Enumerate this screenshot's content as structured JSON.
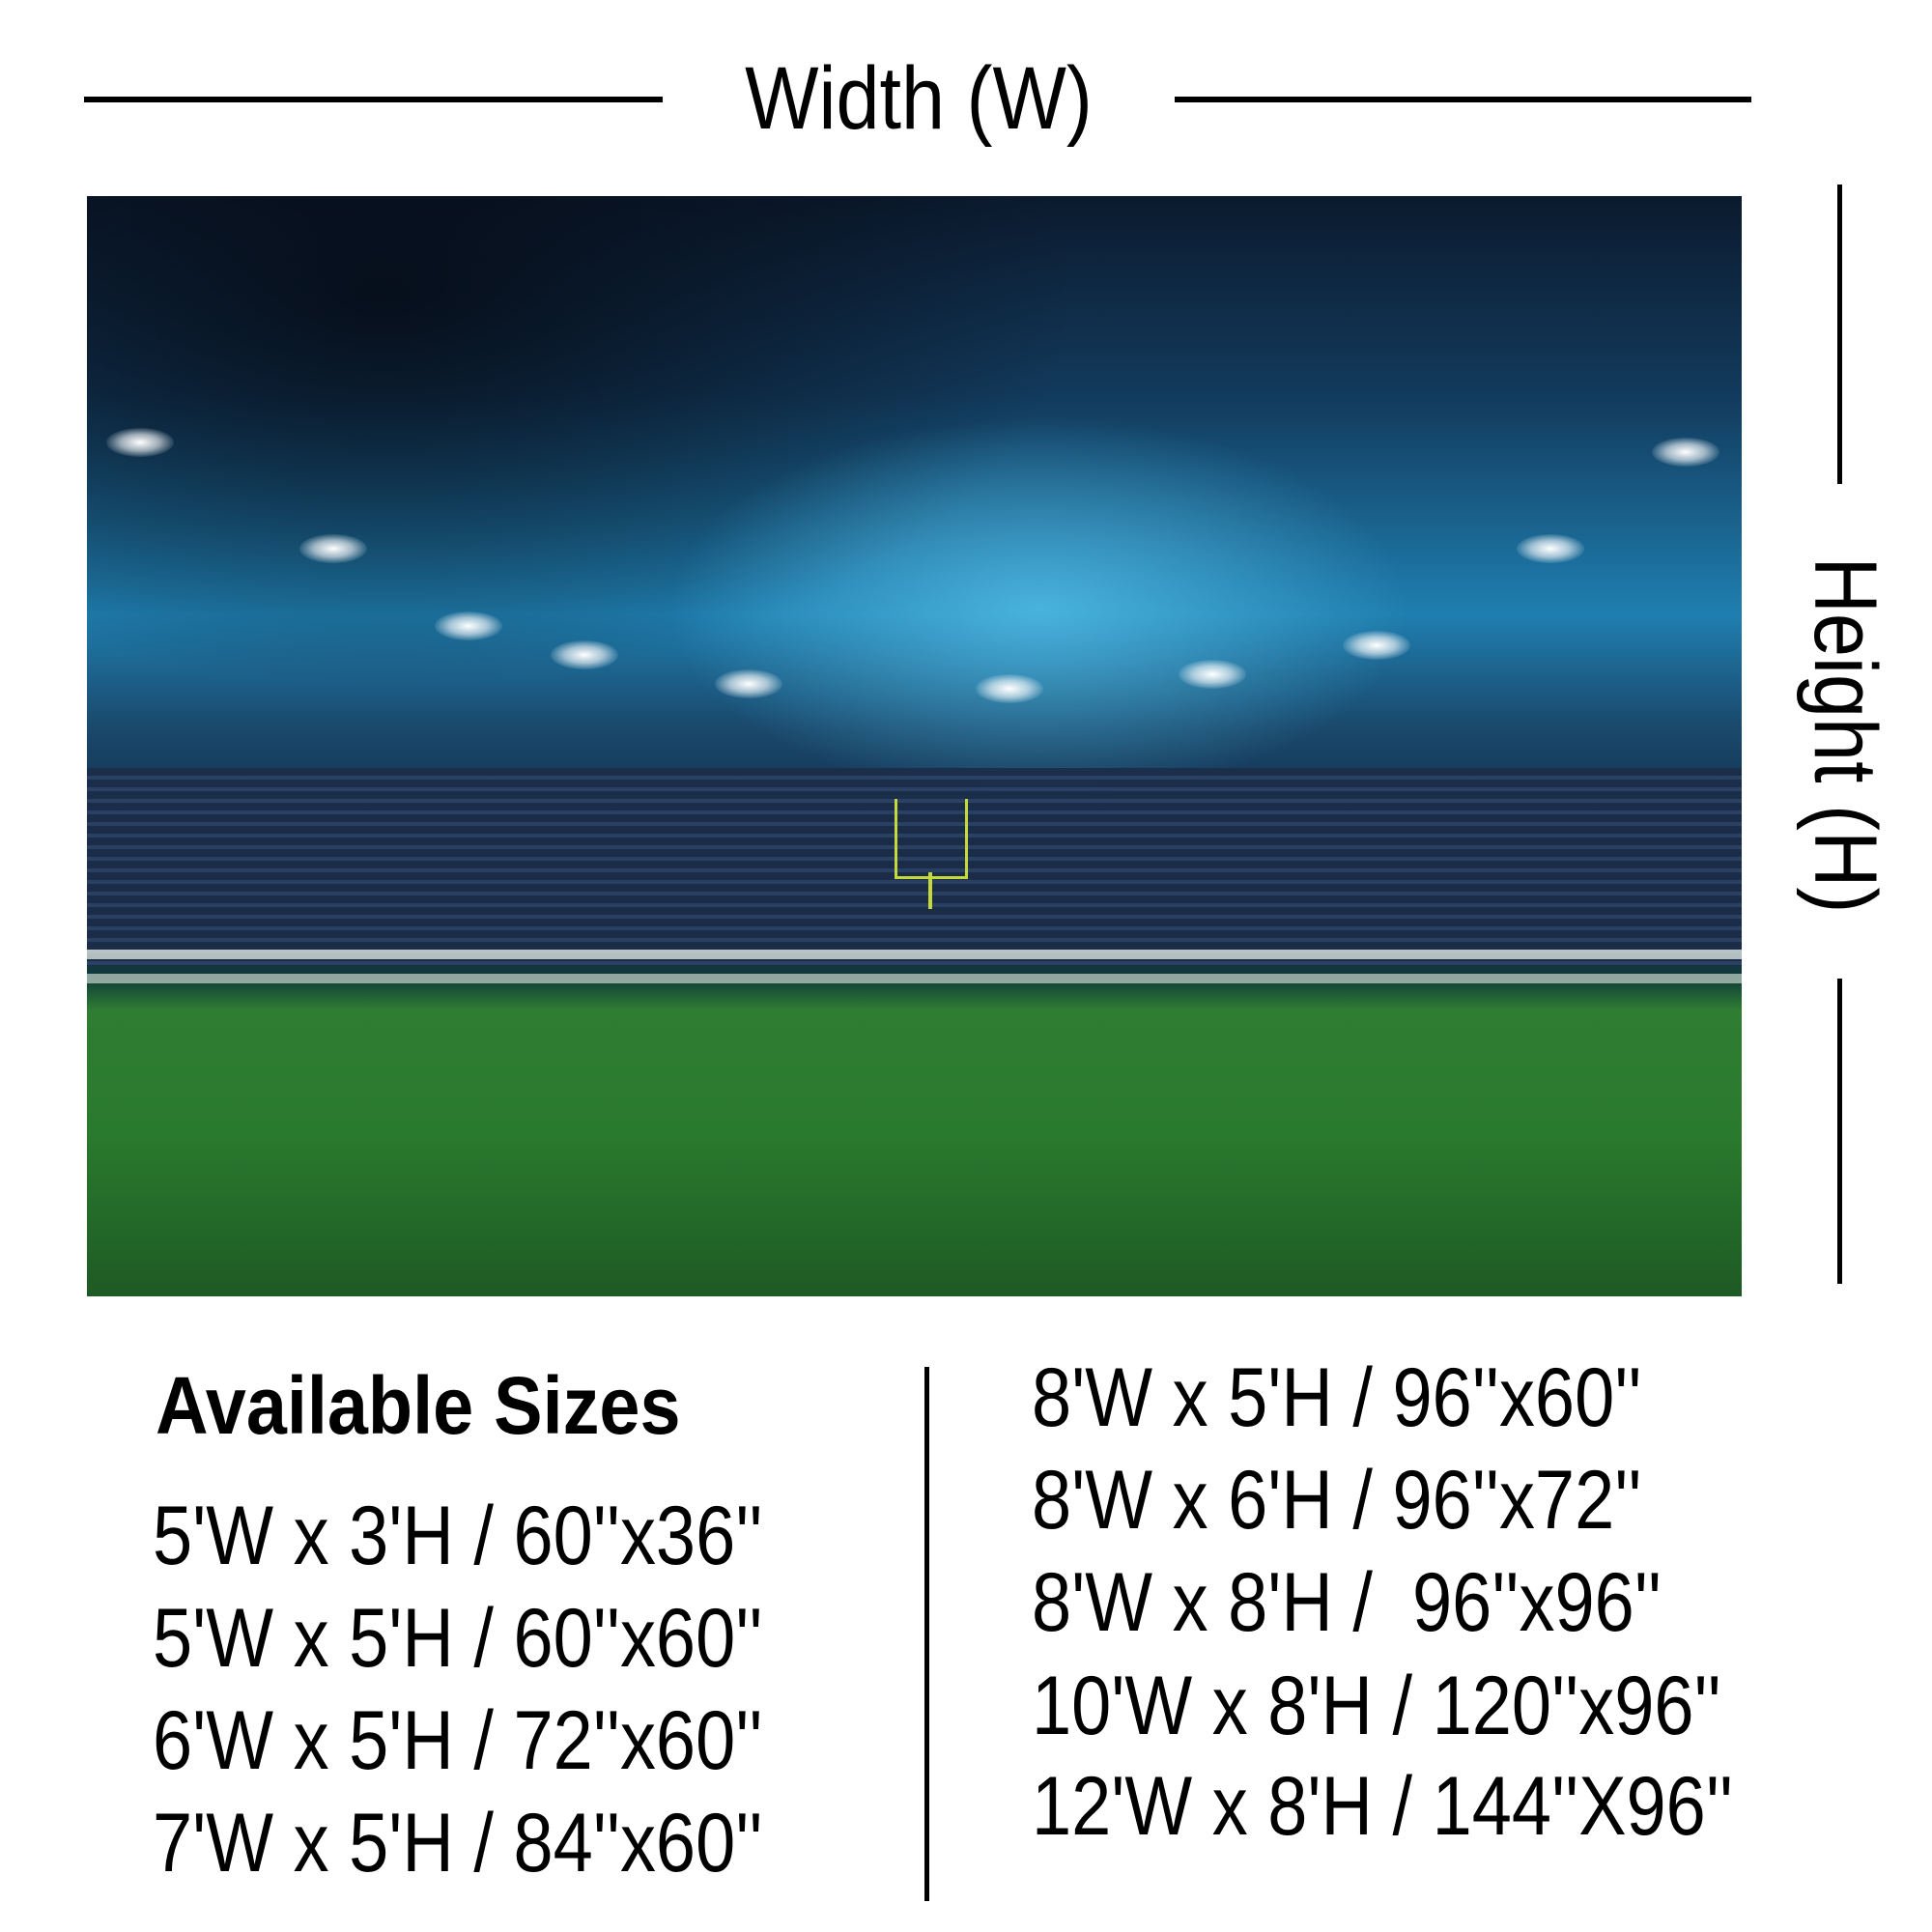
{
  "dimensions": {
    "width_label": "Width (W)",
    "height_label": "Height (H)"
  },
  "sizes": {
    "title": "Available Sizes",
    "left": [
      "5'W x 3'H / 60''x36''",
      "5'W x 5'H / 60''x60''",
      "6'W x 5'H / 72''x60''",
      "7'W x 5'H / 84''x60''"
    ],
    "right": [
      "8'W x 5'H / 96''x60''",
      "8'W x 6'H / 96''x72''",
      "8'W x 8'H /  96''x96''",
      "10'W x 8'H / 120''x96''",
      "12'W x 8'H / 144''X96''"
    ]
  },
  "photo": {
    "subject": "football-stadium-at-night",
    "colors": {
      "sky": "#1f7fb0",
      "grass": "#2f7d32",
      "goalpost": "#c6d93a"
    }
  }
}
